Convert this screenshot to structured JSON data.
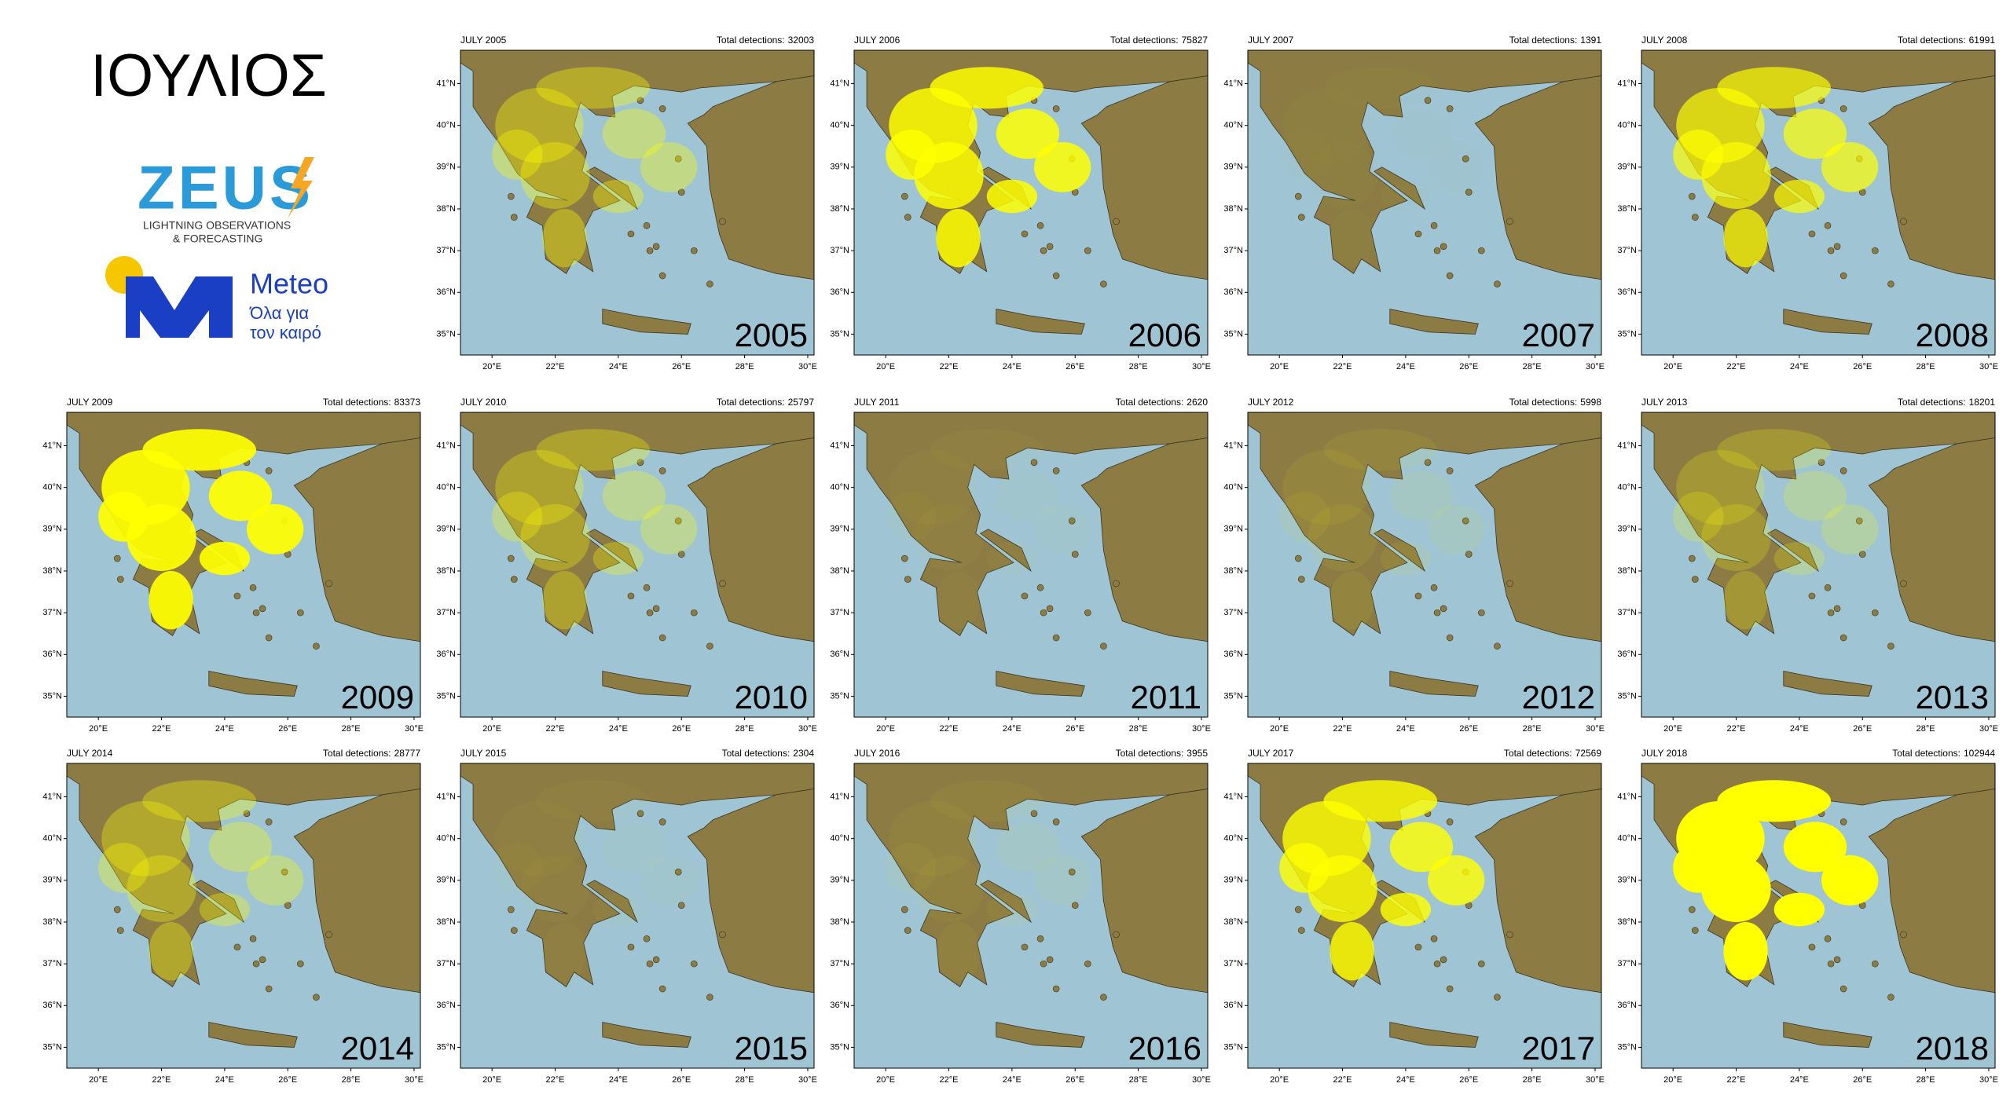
{
  "header": {
    "title": "ΙΟΥΛΙΟΣ"
  },
  "logos": {
    "zeus": "ZEUS",
    "zeus_subtitle_1": "LIGHTNING OBSERVATIONS",
    "zeus_subtitle_2": "& FORECASTING",
    "meteo": "Meteo",
    "meteo_tagline_1": "Όλα για",
    "meteo_tagline_2": "τον καιρό"
  },
  "detections_label": "Total detections:",
  "axes": {
    "lon_range": [
      19,
      30.2
    ],
    "lat_range": [
      34.5,
      41.8
    ],
    "lat_ticks": [
      {
        "value": 35,
        "label": "35°N"
      },
      {
        "value": 36,
        "label": "36°N"
      },
      {
        "value": 37,
        "label": "37°N"
      },
      {
        "value": 38,
        "label": "38°N"
      },
      {
        "value": 39,
        "label": "39°N"
      },
      {
        "value": 40,
        "label": "40°N"
      },
      {
        "value": 41,
        "label": "41°N"
      }
    ],
    "lon_ticks": [
      {
        "value": 20,
        "label": "20°E"
      },
      {
        "value": 22,
        "label": "22°E"
      },
      {
        "value": 24,
        "label": "24°E"
      },
      {
        "value": 26,
        "label": "26°E"
      },
      {
        "value": 28,
        "label": "28°E"
      },
      {
        "value": 30,
        "label": "30°E"
      }
    ]
  },
  "panels": [
    {
      "title": "JULY 2005",
      "detections": 32003,
      "year": "2005"
    },
    {
      "title": "JULY 2006",
      "detections": 75827,
      "year": "2006"
    },
    {
      "title": "JULY 2007",
      "detections": 1391,
      "year": "2007"
    },
    {
      "title": "JULY 2008",
      "detections": 61991,
      "year": "2008"
    },
    {
      "title": "JULY 2009",
      "detections": 83373,
      "year": "2009"
    },
    {
      "title": "JULY 2010",
      "detections": 25797,
      "year": "2010"
    },
    {
      "title": "JULY 2011",
      "detections": 2620,
      "year": "2011"
    },
    {
      "title": "JULY 2012",
      "detections": 5998,
      "year": "2012"
    },
    {
      "title": "JULY 2013",
      "detections": 18201,
      "year": "2013"
    },
    {
      "title": "JULY 2014",
      "detections": 28777,
      "year": "2014"
    },
    {
      "title": "JULY 2015",
      "detections": 2304,
      "year": "2015"
    },
    {
      "title": "JULY 2016",
      "detections": 3955,
      "year": "2016"
    },
    {
      "title": "JULY 2017",
      "detections": 72569,
      "year": "2017"
    },
    {
      "title": "JULY 2018",
      "detections": 102944,
      "year": "2018"
    }
  ]
}
